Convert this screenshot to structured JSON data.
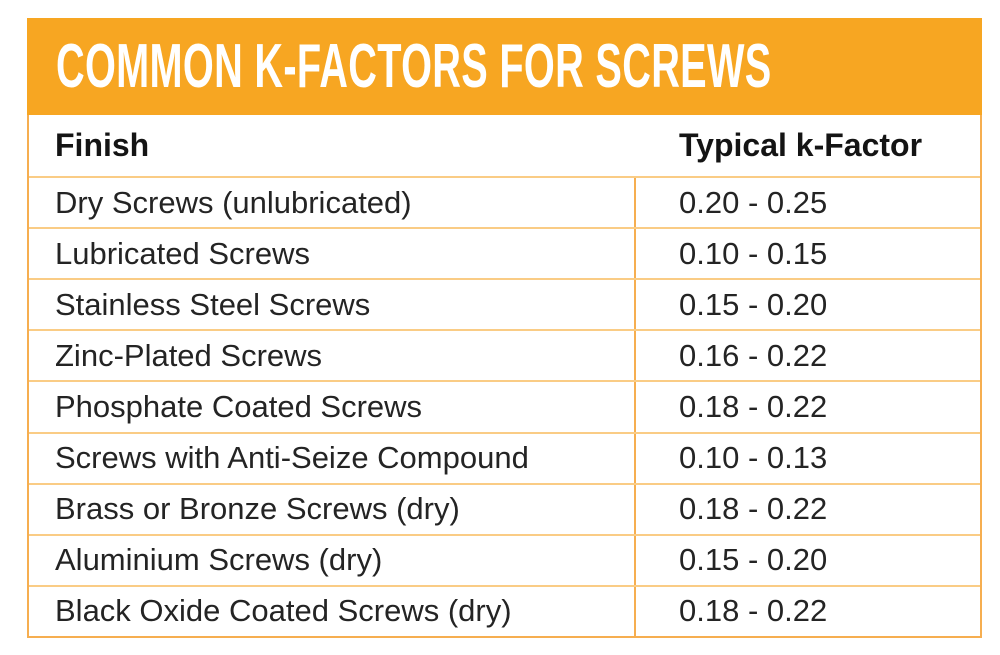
{
  "title": "COMMON K-FACTORS FOR SCREWS",
  "colors": {
    "banner_background": "#F7A622",
    "frame_border": "#F6AE50",
    "row_separator": "#FACC85",
    "title_text": "#FFFFFF",
    "header_text": "#141414",
    "body_text": "#242424",
    "page_background": "#FFFFFF"
  },
  "table": {
    "columns": [
      {
        "label": "Finish"
      },
      {
        "label": "Typical k-Factor"
      }
    ],
    "rows": [
      {
        "finish": "Dry Screws (unlubricated)",
        "k_factor": "0.20 - 0.25"
      },
      {
        "finish": "Lubricated Screws",
        "k_factor": "0.10 - 0.15"
      },
      {
        "finish": "Stainless Steel Screws",
        "k_factor": "0.15 - 0.20"
      },
      {
        "finish": "Zinc-Plated Screws",
        "k_factor": "0.16 - 0.22"
      },
      {
        "finish": "Phosphate Coated Screws",
        "k_factor": "0.18 - 0.22"
      },
      {
        "finish": "Screws with Anti-Seize Compound",
        "k_factor": "0.10 - 0.13"
      },
      {
        "finish": "Brass or Bronze Screws (dry)",
        "k_factor": "0.18 - 0.22"
      },
      {
        "finish": "Aluminium Screws (dry)",
        "k_factor": "0.15 - 0.20"
      },
      {
        "finish": "Black Oxide Coated Screws (dry)",
        "k_factor": "0.18 - 0.22"
      }
    ]
  },
  "chart_data": {
    "type": "table",
    "title": "COMMON K-FACTORS FOR SCREWS",
    "columns": [
      "Finish",
      "Typical k-Factor"
    ],
    "rows": [
      [
        "Dry Screws (unlubricated)",
        "0.20 - 0.25"
      ],
      [
        "Lubricated Screws",
        "0.10 - 0.15"
      ],
      [
        "Stainless Steel Screws",
        "0.15 - 0.20"
      ],
      [
        "Zinc-Plated Screws",
        "0.16 - 0.22"
      ],
      [
        "Phosphate Coated Screws",
        "0.18 - 0.22"
      ],
      [
        "Screws with Anti-Seize Compound",
        "0.10 - 0.13"
      ],
      [
        "Brass or Bronze Screws (dry)",
        "0.18 - 0.22"
      ],
      [
        "Aluminium Screws (dry)",
        "0.15 - 0.20"
      ],
      [
        "Black Oxide Coated Screws (dry)",
        "0.18 - 0.22"
      ]
    ],
    "k_factor_numeric_ranges": [
      [
        0.2,
        0.25
      ],
      [
        0.1,
        0.15
      ],
      [
        0.15,
        0.2
      ],
      [
        0.16,
        0.22
      ],
      [
        0.18,
        0.22
      ],
      [
        0.1,
        0.13
      ],
      [
        0.18,
        0.22
      ],
      [
        0.15,
        0.2
      ],
      [
        0.18,
        0.22
      ]
    ]
  }
}
